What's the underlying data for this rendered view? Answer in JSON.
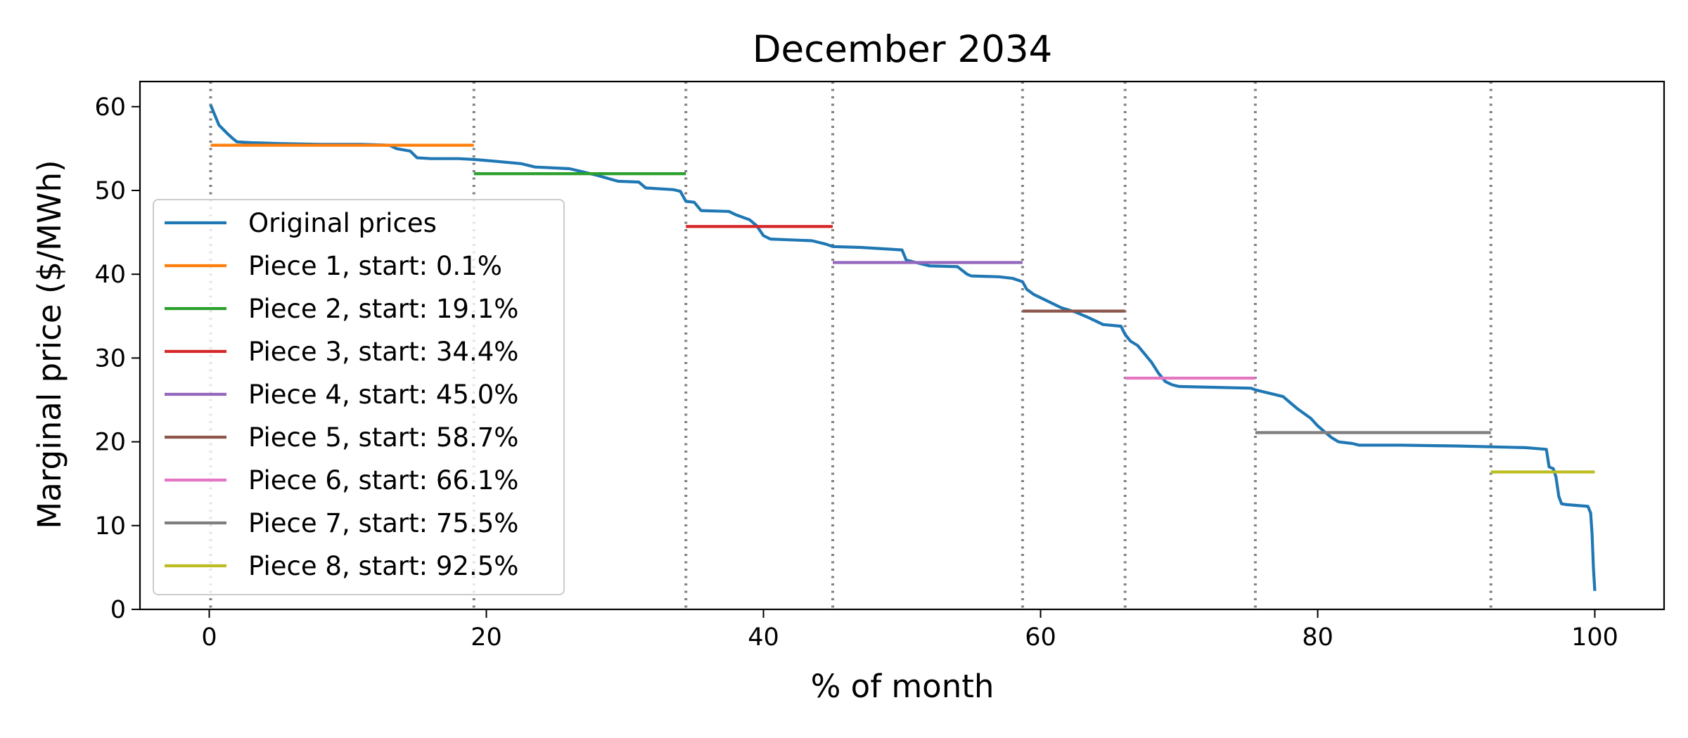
{
  "chart_data": {
    "type": "line",
    "title": "December 2034",
    "xlabel": "% of month",
    "ylabel": "Marginal price ($/MWh)",
    "xlim": [
      -5,
      105
    ],
    "ylim": [
      0,
      63
    ],
    "xticks": [
      0,
      20,
      40,
      60,
      80,
      100
    ],
    "yticks": [
      0,
      10,
      20,
      30,
      40,
      50,
      60
    ],
    "grid": false,
    "legend_position": "lower-left",
    "breakpoints": [
      0.1,
      19.1,
      34.4,
      45.0,
      58.7,
      66.1,
      75.5,
      92.5
    ],
    "breakpoint_color": "#808080",
    "series": [
      {
        "name": "Original prices",
        "color": "#1f77b4",
        "points": [
          [
            0.1,
            60.2
          ],
          [
            0.3,
            59.4
          ],
          [
            0.5,
            58.6
          ],
          [
            0.7,
            57.8
          ],
          [
            1.0,
            57.3
          ],
          [
            1.3,
            56.8
          ],
          [
            1.7,
            56.2
          ],
          [
            2.0,
            55.8
          ],
          [
            3.0,
            55.7
          ],
          [
            5.0,
            55.6
          ],
          [
            8.0,
            55.5
          ],
          [
            11.0,
            55.5
          ],
          [
            13.0,
            55.4
          ],
          [
            13.5,
            55.0
          ],
          [
            14.5,
            54.7
          ],
          [
            15.0,
            53.9
          ],
          [
            16.0,
            53.8
          ],
          [
            18.0,
            53.8
          ],
          [
            19.1,
            53.7
          ],
          [
            20.5,
            53.5
          ],
          [
            22.5,
            53.2
          ],
          [
            23.5,
            52.8
          ],
          [
            26.0,
            52.6
          ],
          [
            27.0,
            52.2
          ],
          [
            28.0,
            51.8
          ],
          [
            29.5,
            51.1
          ],
          [
            31.0,
            51.0
          ],
          [
            31.5,
            50.3
          ],
          [
            33.5,
            50.1
          ],
          [
            34.0,
            49.9
          ],
          [
            34.4,
            48.7
          ],
          [
            35.0,
            48.6
          ],
          [
            35.5,
            47.6
          ],
          [
            37.5,
            47.5
          ],
          [
            38.0,
            47.1
          ],
          [
            39.0,
            46.5
          ],
          [
            39.5,
            45.8
          ],
          [
            40.0,
            44.6
          ],
          [
            40.5,
            44.2
          ],
          [
            42.0,
            44.1
          ],
          [
            43.5,
            44.0
          ],
          [
            44.5,
            43.6
          ],
          [
            45.0,
            43.3
          ],
          [
            47.0,
            43.2
          ],
          [
            50.0,
            42.9
          ],
          [
            50.3,
            41.7
          ],
          [
            51.0,
            41.4
          ],
          [
            52.0,
            41.0
          ],
          [
            54.0,
            40.9
          ],
          [
            54.7,
            40.0
          ],
          [
            55.0,
            39.8
          ],
          [
            57.0,
            39.7
          ],
          [
            58.0,
            39.5
          ],
          [
            58.7,
            39.1
          ],
          [
            59.0,
            38.2
          ],
          [
            59.5,
            37.6
          ],
          [
            60.5,
            36.8
          ],
          [
            61.5,
            36.0
          ],
          [
            62.5,
            35.5
          ],
          [
            63.5,
            34.8
          ],
          [
            64.5,
            34.0
          ],
          [
            65.8,
            33.8
          ],
          [
            66.1,
            32.8
          ],
          [
            66.5,
            32.0
          ],
          [
            67.0,
            31.5
          ],
          [
            67.5,
            30.5
          ],
          [
            68.0,
            29.5
          ],
          [
            68.5,
            28.2
          ],
          [
            69.0,
            27.2
          ],
          [
            69.5,
            26.8
          ],
          [
            70.0,
            26.6
          ],
          [
            75.2,
            26.4
          ],
          [
            75.5,
            26.2
          ],
          [
            76.5,
            25.8
          ],
          [
            77.5,
            25.4
          ],
          [
            78.0,
            24.7
          ],
          [
            78.5,
            24.0
          ],
          [
            79.0,
            23.4
          ],
          [
            79.5,
            22.8
          ],
          [
            80.0,
            21.9
          ],
          [
            80.5,
            21.2
          ],
          [
            81.0,
            20.5
          ],
          [
            81.5,
            20.0
          ],
          [
            82.5,
            19.8
          ],
          [
            83.0,
            19.6
          ],
          [
            86.0,
            19.6
          ],
          [
            90.0,
            19.5
          ],
          [
            92.5,
            19.4
          ],
          [
            95.0,
            19.3
          ],
          [
            96.5,
            19.1
          ],
          [
            96.7,
            17.0
          ],
          [
            97.0,
            16.8
          ],
          [
            97.2,
            15.8
          ],
          [
            97.4,
            13.5
          ],
          [
            97.6,
            12.6
          ],
          [
            98.0,
            12.5
          ],
          [
            99.5,
            12.3
          ],
          [
            99.7,
            11.5
          ],
          [
            99.8,
            9.0
          ],
          [
            99.9,
            5.0
          ],
          [
            100.0,
            2.2
          ]
        ]
      },
      {
        "name": "Piece 1, start: 0.1%",
        "color": "#ff7f0e",
        "x": [
          0.1,
          19.1
        ],
        "value": 55.4
      },
      {
        "name": "Piece 2, start: 19.1%",
        "color": "#2ca02c",
        "x": [
          19.1,
          34.4
        ],
        "value": 52.0
      },
      {
        "name": "Piece 3, start: 34.4%",
        "color": "#d62728",
        "x": [
          34.4,
          45.0
        ],
        "value": 45.7
      },
      {
        "name": "Piece 4, start: 45.0%",
        "color": "#9467bd",
        "x": [
          45.0,
          58.7
        ],
        "value": 41.4
      },
      {
        "name": "Piece 5, start: 58.7%",
        "color": "#8c564b",
        "x": [
          58.7,
          66.1
        ],
        "value": 35.6
      },
      {
        "name": "Piece 6, start: 66.1%",
        "color": "#e377c2",
        "x": [
          66.1,
          75.5
        ],
        "value": 27.6
      },
      {
        "name": "Piece 7, start: 75.5%",
        "color": "#7f7f7f",
        "x": [
          75.5,
          92.5
        ],
        "value": 21.1
      },
      {
        "name": "Piece 8, start: 92.5%",
        "color": "#bcbd22",
        "x": [
          92.5,
          100.0
        ],
        "value": 16.4
      }
    ]
  }
}
